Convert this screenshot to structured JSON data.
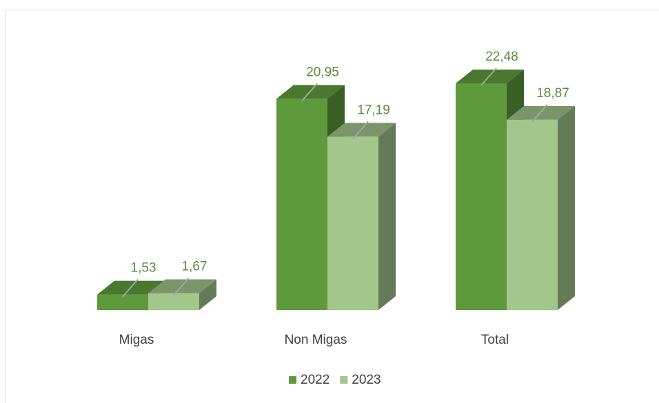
{
  "chart_data": {
    "type": "bar3d",
    "categories": [
      "Migas",
      "Non Migas",
      "Total"
    ],
    "series": [
      {
        "name": "2022",
        "color": "#5e9a3b",
        "values": [
          1.53,
          20.95,
          22.48
        ],
        "value_labels": [
          "1,53",
          "20,95",
          "22,48"
        ]
      },
      {
        "name": "2023",
        "color": "#a3c68c",
        "values": [
          1.67,
          17.19,
          18.87
        ],
        "value_labels": [
          "1,67",
          "17,19",
          "18,87"
        ]
      }
    ],
    "legend": "bottom"
  }
}
